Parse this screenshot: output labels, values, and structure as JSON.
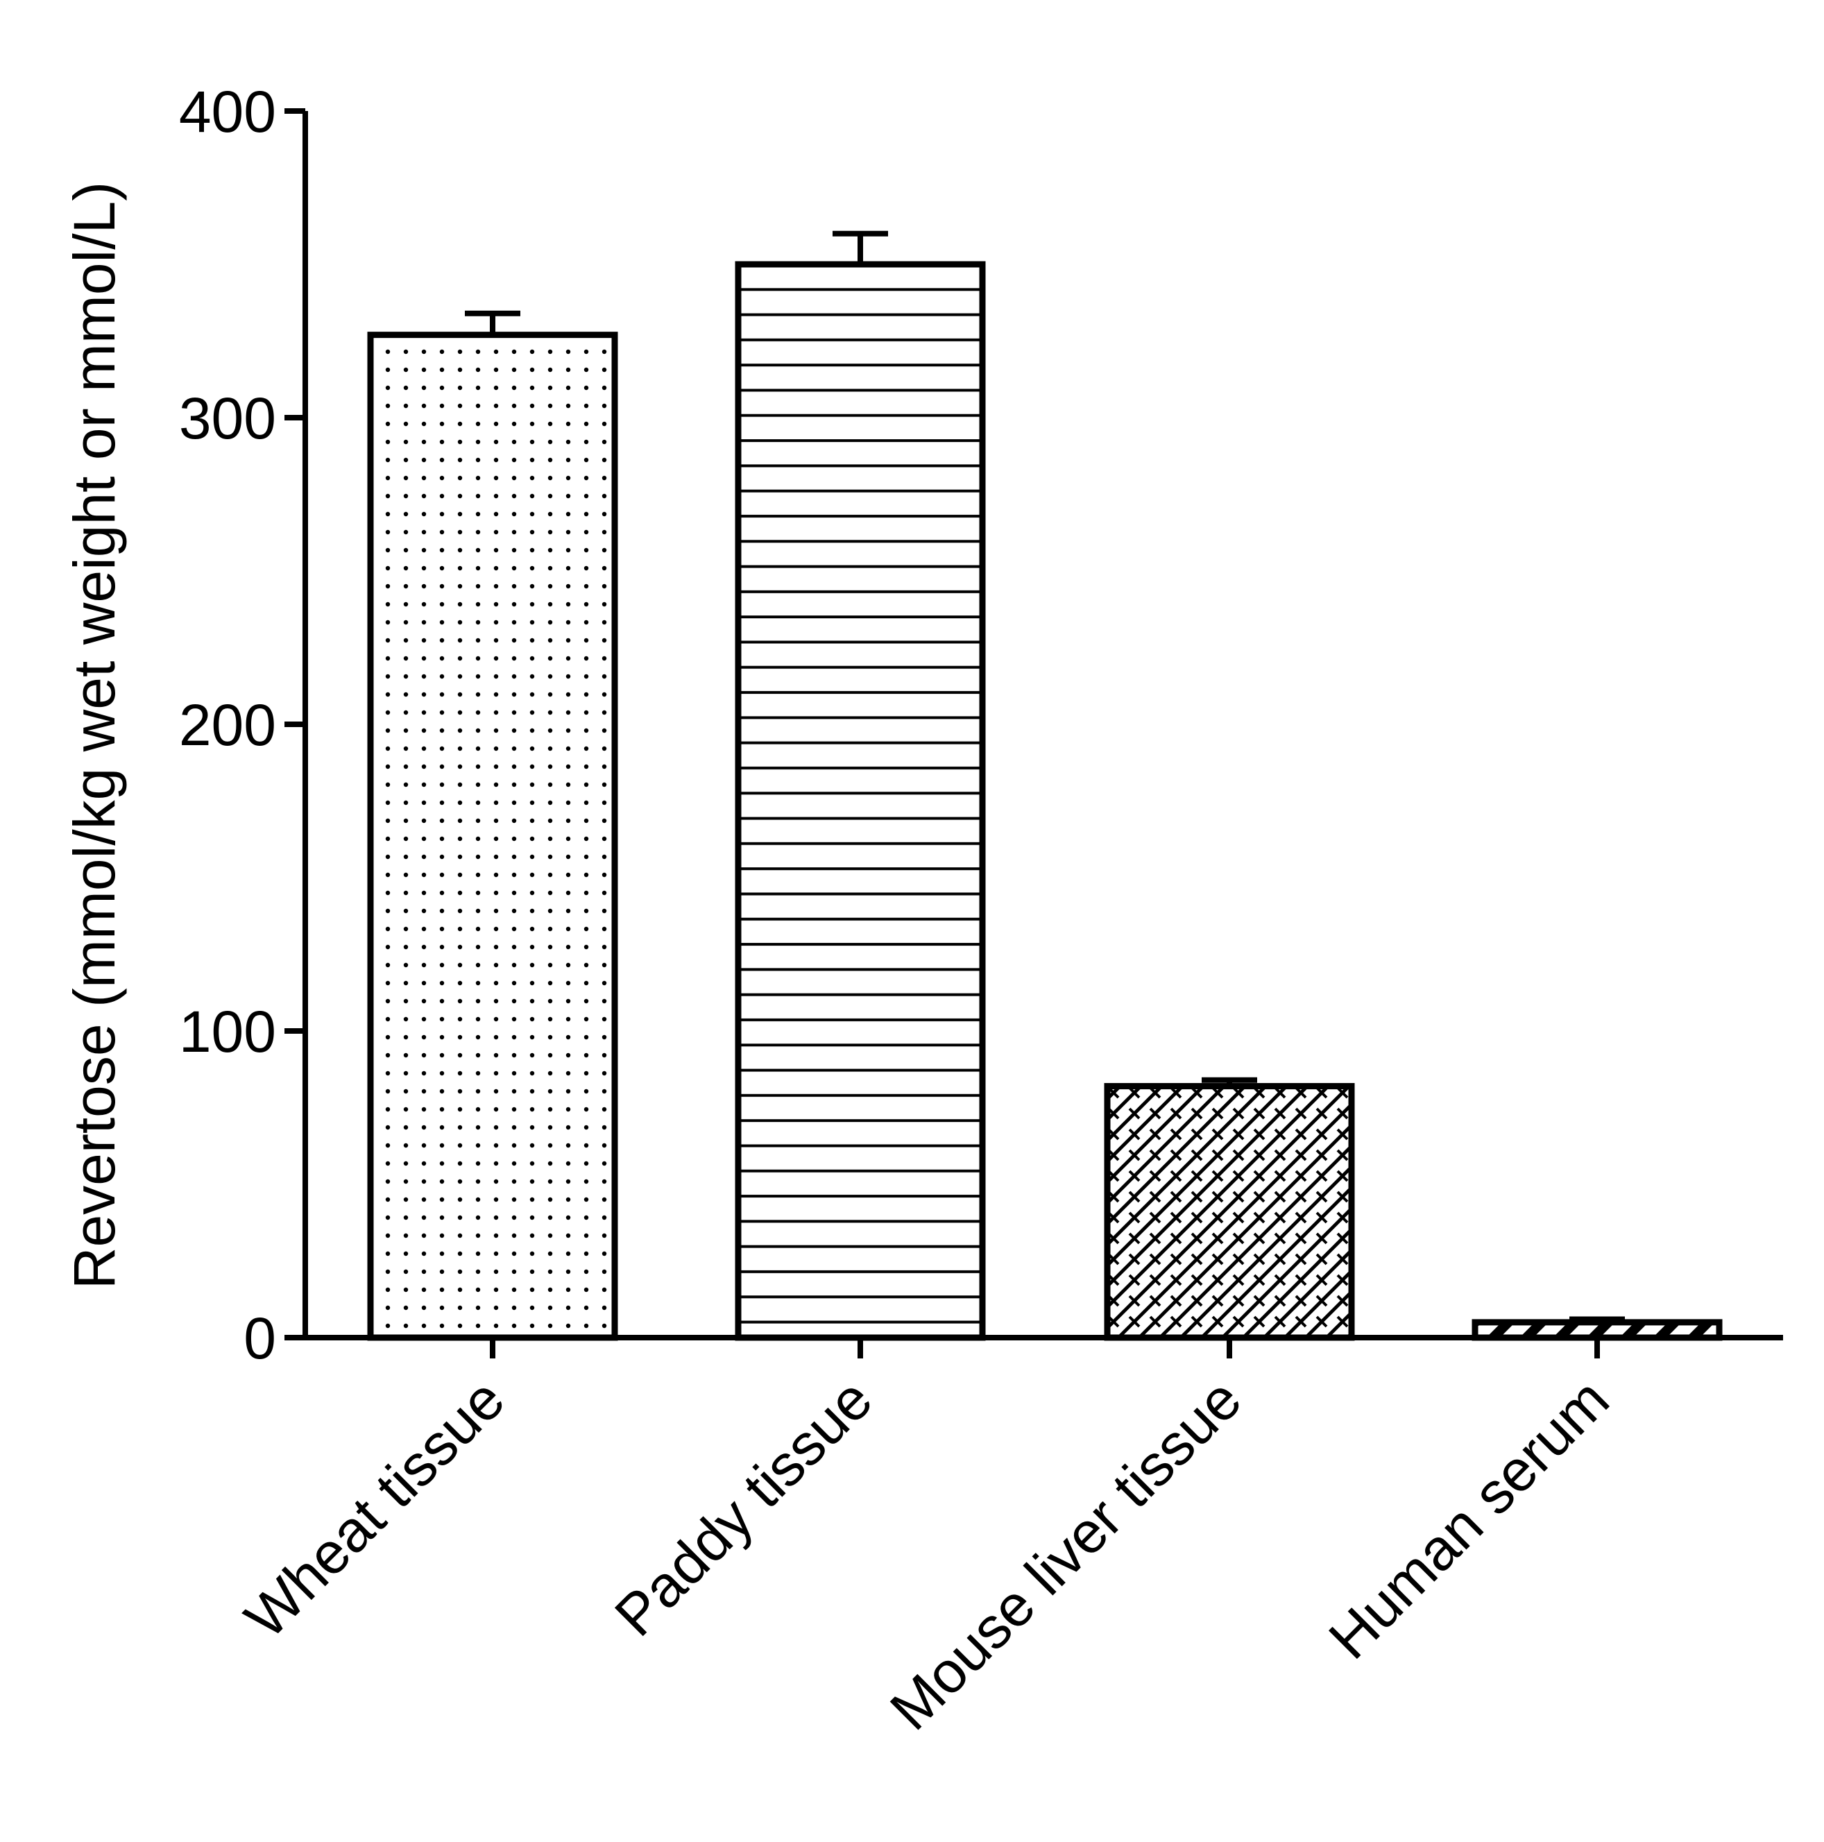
{
  "chart_data": {
    "type": "bar",
    "title": "",
    "xlabel": "",
    "ylabel": "Revertose (mmol/kg wet weight or mmol/L)",
    "ylim": [
      0,
      400
    ],
    "yticks": [
      0,
      100,
      200,
      300,
      400
    ],
    "categories": [
      "Wheat tissue",
      "Paddy tissue",
      "Mouse liver tissue",
      "Human serum"
    ],
    "values": [
      327,
      350,
      82,
      5
    ],
    "errors": [
      7,
      10,
      2,
      1
    ],
    "patterns": [
      "dots",
      "horizontal-lines",
      "crosshatch",
      "diagonal-stripes"
    ],
    "grid": false,
    "legend": "none"
  }
}
